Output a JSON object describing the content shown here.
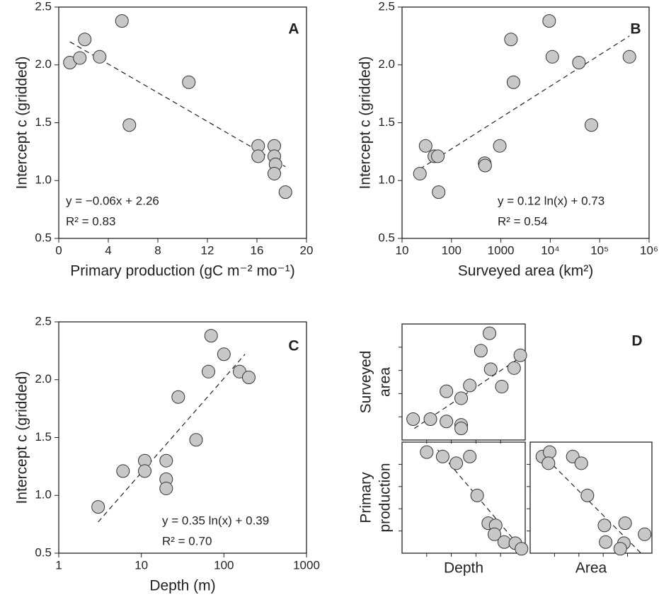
{
  "chart_data": [
    {
      "type": "scatter",
      "panel_label": "A",
      "xlabel": "Primary production (gC m⁻² mo⁻¹)",
      "ylabel": [
        "Intercept c (gridded)"
      ],
      "x": [
        0.9,
        1.7,
        2.1,
        3.3,
        5.1,
        5.7,
        10.5,
        16.1,
        16.1,
        17.4,
        17.4,
        17.5,
        17.4,
        18.3
      ],
      "values": [
        2.02,
        2.06,
        2.22,
        2.07,
        2.38,
        1.48,
        1.85,
        1.3,
        1.21,
        1.3,
        1.21,
        1.14,
        1.06,
        0.9
      ],
      "color": "#c8c8c8",
      "fit": {
        "x": [
          0.9,
          18.3
        ],
        "y": [
          2.2,
          1.12
        ]
      },
      "annotations": [
        "y = −0.06x + 2.26",
        "R² = 0.83"
      ],
      "xlim": [
        0,
        20
      ],
      "xticks": [
        0,
        4,
        8,
        12,
        16,
        20
      ],
      "ylim": [
        0.5,
        2.5
      ],
      "yticks": [
        0.5,
        {
          "value": 1,
          "label": "1.0"
        },
        1.5,
        {
          "value": 2,
          "label": "2.0"
        },
        2.5
      ]
    },
    {
      "type": "scatter",
      "panel_label": "B",
      "xlabel": "Surveyed area (km²)",
      "ylabel": [
        "Intercept c (gridded)"
      ],
      "log_x": true,
      "x": [
        23,
        30,
        45,
        53,
        55,
        470,
        480,
        950,
        1600,
        1800,
        9500,
        11000,
        38000,
        68000,
        400000
      ],
      "values": [
        1.06,
        1.3,
        1.21,
        1.21,
        0.9,
        1.15,
        1.13,
        1.3,
        2.22,
        1.85,
        2.38,
        2.07,
        2.02,
        1.48,
        2.07
      ],
      "color": "#c8c8c8",
      "fit": {
        "x": [
          23,
          400000
        ],
        "y": [
          1.1,
          2.25
        ]
      },
      "annotations": [
        "y = 0.12 ln(x) + 0.73",
        "R² = 0.54"
      ],
      "xlim": [
        10,
        1000000
      ],
      "xticks": [
        10,
        100,
        1000,
        {
          "value": 10000,
          "label": "10⁴"
        },
        {
          "value": 100000,
          "label": "10⁵"
        },
        {
          "value": 1000000,
          "label": "10⁶"
        }
      ],
      "ylim": [
        0.5,
        2.5
      ],
      "yticks": [
        0.5,
        {
          "value": 1,
          "label": "1.0"
        },
        1.5,
        {
          "value": 2,
          "label": "2.0"
        },
        2.5
      ]
    },
    {
      "type": "scatter",
      "panel_label": "C",
      "xlabel": "Depth (m)",
      "ylabel": [
        "Intercept c (gridded)"
      ],
      "log_x": true,
      "x": [
        3,
        6,
        11,
        11,
        20,
        20,
        20,
        28,
        46,
        65,
        70,
        100,
        155,
        200
      ],
      "values": [
        0.9,
        1.21,
        1.3,
        1.21,
        1.3,
        1.14,
        1.06,
        1.85,
        1.48,
        2.07,
        2.38,
        2.22,
        2.07,
        2.02
      ],
      "color": "#c8c8c8",
      "fit": {
        "x": [
          3,
          180
        ],
        "y": [
          0.77,
          2.22
        ]
      },
      "annotations": [
        "y = 0.35 ln(x) + 0.39",
        "R² = 0.70"
      ],
      "xlim": [
        1,
        1000
      ],
      "xticks": [
        1,
        10,
        100,
        1000
      ],
      "ylim": [
        0.5,
        2.5
      ],
      "yticks": [
        0.5,
        {
          "value": 1,
          "label": "1.0"
        },
        1.5,
        {
          "value": 2,
          "label": "2.0"
        },
        2.5
      ]
    },
    {
      "type": "scatter",
      "panel_label": "D",
      "ylabel": [
        "Surveyed",
        "area"
      ],
      "x": [
        0.09,
        0.23,
        0.36,
        0.36,
        0.48,
        0.48,
        0.48,
        0.55,
        0.64,
        0.71,
        0.72,
        0.81,
        0.91,
        0.96
      ],
      "values": [
        0.18,
        0.18,
        0.16,
        0.42,
        0.36,
        0.13,
        0.1,
        0.47,
        0.77,
        0.92,
        0.61,
        0.46,
        0.62,
        0.73
      ],
      "color": "#c8c8c8",
      "fit": {
        "x": [
          0.1,
          1
        ],
        "y": [
          0.1,
          0.74
        ]
      },
      "xlim": [
        0,
        1
      ],
      "ylim": [
        0,
        1
      ]
    },
    {
      "type": "scatter",
      "xlabel": "Depth",
      "ylabel": [
        "Primary",
        "production"
      ],
      "x": [
        0.2,
        0.33,
        0.44,
        0.55,
        0.61,
        0.7,
        0.76,
        0.75,
        0.83,
        0.92,
        0.97
      ],
      "values": [
        0.91,
        0.87,
        0.81,
        0.87,
        0.52,
        0.27,
        0.25,
        0.17,
        0.1,
        0.09,
        0.04
      ],
      "color": "#c8c8c8",
      "fit": {
        "x": [
          0.29,
          1
        ],
        "y": [
          0.93,
          0
        ]
      },
      "xlim": [
        0,
        1
      ],
      "ylim": [
        0,
        1
      ]
    },
    {
      "type": "scatter",
      "xlabel": "Area",
      "x": [
        0.1,
        0.16,
        0.15,
        0.35,
        0.42,
        0.47,
        0.61,
        0.62,
        0.77,
        0.78,
        0.74,
        0.94
      ],
      "values": [
        0.87,
        0.91,
        0.81,
        0.87,
        0.81,
        0.52,
        0.25,
        0.1,
        0.09,
        0.27,
        0.04,
        0.17
      ],
      "color": "#c8c8c8",
      "fit": {
        "x": [
          0.09,
          0.91
        ],
        "y": [
          0.9,
          0
        ]
      },
      "xlim": [
        0,
        1
      ],
      "ylim": [
        0,
        1
      ]
    }
  ]
}
